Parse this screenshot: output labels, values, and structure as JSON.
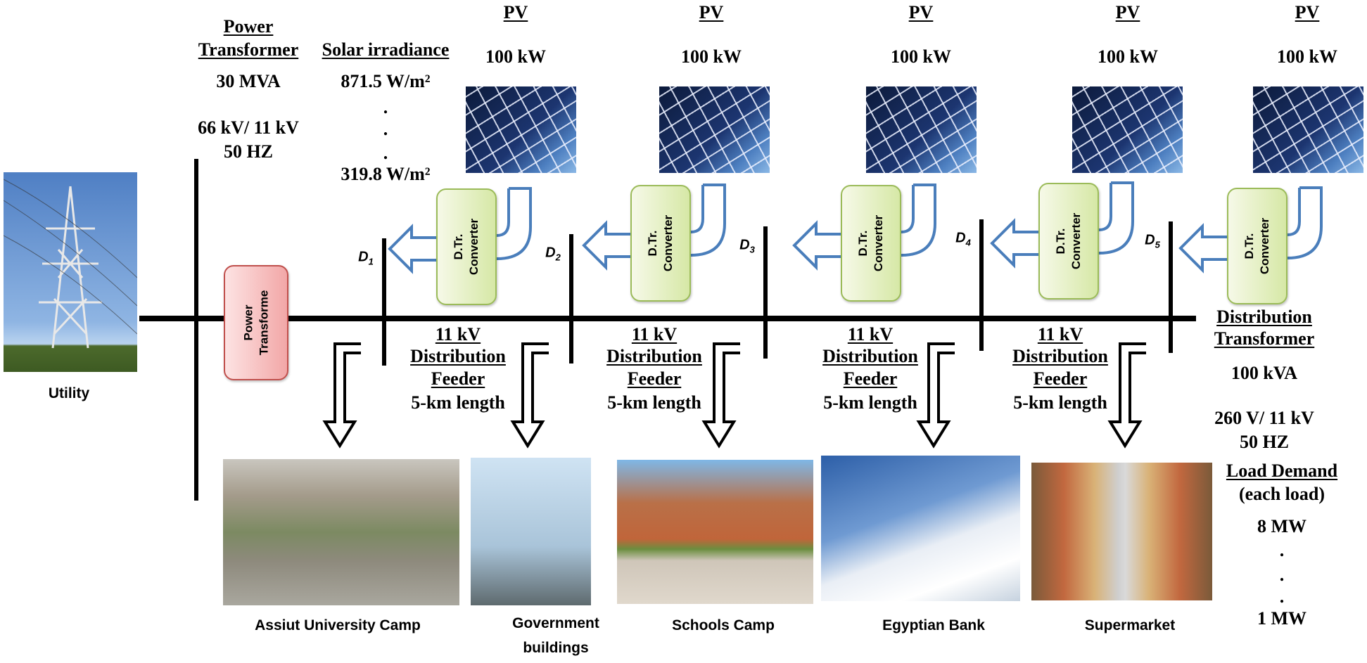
{
  "utility": {
    "label": "Utility"
  },
  "power_transformer": {
    "title_line1": "Power",
    "title_line2": "Transformer",
    "rating": "30 MVA",
    "voltage": "66 kV/ 11 kV",
    "frequency": "50 HZ",
    "box_line1": "Power",
    "box_line2": "Transforme"
  },
  "solar": {
    "title": "Solar irradiance",
    "max": "871.5 W/m²",
    "dot": ".",
    "min": "319.8 W/m²"
  },
  "pv_units": [
    {
      "label": "PV",
      "rating": "100 kW",
      "conv1": "D.Tr.",
      "conv2": "Converter",
      "bus": "D",
      "bus_sub": "1"
    },
    {
      "label": "PV",
      "rating": "100 kW",
      "conv1": "D.Tr.",
      "conv2": "Converter",
      "bus": "D",
      "bus_sub": "2"
    },
    {
      "label": "PV",
      "rating": "100 kW",
      "conv1": "D.Tr.",
      "conv2": "Converter",
      "bus": "D",
      "bus_sub": "3"
    },
    {
      "label": "PV",
      "rating": "100 kW",
      "conv1": "D.Tr.",
      "conv2": "Converter",
      "bus": "D",
      "bus_sub": "4"
    },
    {
      "label": "PV",
      "rating": "100 kW",
      "conv1": "D.Tr.",
      "conv2": "Converter",
      "bus": "D",
      "bus_sub": "5"
    }
  ],
  "feeders": [
    {
      "line1": "11 kV",
      "line2": "Distribution",
      "line3": "Feeder",
      "line4": "5-km length"
    },
    {
      "line1": "11 kV",
      "line2": "Distribution",
      "line3": "Feeder",
      "line4": "5-km length"
    },
    {
      "line1": "11 kV",
      "line2": "Distribution",
      "line3": "Feeder",
      "line4": "5-km length"
    },
    {
      "line1": "11 kV",
      "line2": "Distribution",
      "line3": "Feeder",
      "line4": "5-km length"
    }
  ],
  "loads": [
    {
      "line1": "Assiut University Camp",
      "line2": ""
    },
    {
      "line1": "Government",
      "line2": "buildings"
    },
    {
      "line1": "Schools Camp",
      "line2": ""
    },
    {
      "line1": "Egyptian Bank",
      "line2": ""
    },
    {
      "line1": "Supermarket",
      "line2": ""
    }
  ],
  "distribution_transformer": {
    "title_line1": "Distribution",
    "title_line2": "Transformer",
    "rating": "100 kVA",
    "voltage": "260 V/ 11 kV",
    "frequency": "50 HZ"
  },
  "load_demand": {
    "title": "Load Demand",
    "subtitle": "(each load)",
    "max": "8 MW",
    "dot": ".",
    "min": "1 MW"
  },
  "colors": {
    "converter_border": "#9bbb59",
    "transformer_border": "#c0504d",
    "pv_arrow": "#4a7ebb"
  }
}
